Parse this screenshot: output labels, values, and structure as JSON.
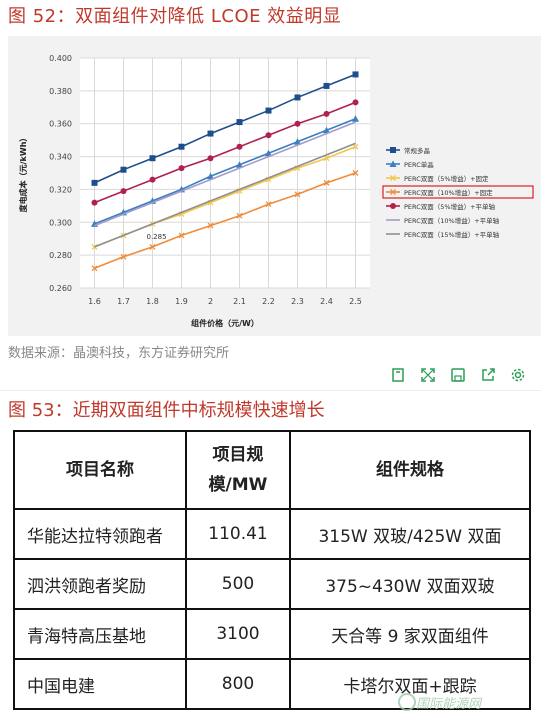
{
  "figure1": {
    "title": "图 52：双面组件对降低 LCOE 效益明显",
    "source": "数据来源：晶澳科技，东方证券研究所"
  },
  "figure2": {
    "title": "图 53：近期双面组件中标规模快速增长",
    "table": {
      "headers": [
        "项目名称",
        "项目规模/MW",
        "组件规格"
      ],
      "rows": [
        [
          "华能达拉特领跑者",
          "110.41",
          "315W 双玻/425W 双面"
        ],
        [
          "泗洪领跑者奖励",
          "500",
          "375~430W 双面双玻"
        ],
        [
          "青海特高压基地",
          "3100",
          "天合等 9 家双面组件"
        ],
        [
          "中国电建",
          "800",
          "卡塔尔双面+跟踪"
        ]
      ]
    }
  },
  "toolbar": {
    "icons": [
      "bookmark-icon",
      "expand-icon",
      "save-icon",
      "share-icon",
      "settings-icon"
    ]
  },
  "watermark": "国际能源网",
  "chart_data": {
    "type": "line",
    "title": "",
    "xlabel": "组件价格（元/W）",
    "ylabel": "度电成本（元/kWh）",
    "xlim": [
      1.55,
      2.55
    ],
    "ylim": [
      0.26,
      0.4
    ],
    "x_ticks": [
      "1.6",
      "1.7",
      "1.8",
      "1.9",
      "2",
      "2.1",
      "2.2",
      "2.3",
      "2.4",
      "2.5"
    ],
    "y_ticks": [
      "0.260",
      "0.280",
      "0.300",
      "0.320",
      "0.340",
      "0.360",
      "0.380",
      "0.400"
    ],
    "grid": true,
    "legend_position": "right",
    "highlighted_legend_index": 3,
    "annotation": {
      "text": "0.285",
      "x": 1.8,
      "y": 0.285
    },
    "series": [
      {
        "name": "常规多晶",
        "color": "#1f4e8c",
        "marker": "square",
        "x": [
          1.6,
          1.7,
          1.8,
          1.9,
          2.0,
          2.1,
          2.2,
          2.3,
          2.4,
          2.5
        ],
        "y": [
          0.324,
          0.332,
          0.339,
          0.346,
          0.354,
          0.361,
          0.368,
          0.376,
          0.383,
          0.39
        ]
      },
      {
        "name": "PERC单晶",
        "color": "#3a7fc4",
        "marker": "triangle",
        "x": [
          1.6,
          1.7,
          1.8,
          1.9,
          2.0,
          2.1,
          2.2,
          2.3,
          2.4,
          2.5
        ],
        "y": [
          0.299,
          0.306,
          0.313,
          0.32,
          0.328,
          0.335,
          0.342,
          0.349,
          0.356,
          0.363
        ]
      },
      {
        "name": "PERC双面（5%增益）+固定",
        "color": "#f2c84b",
        "marker": "x",
        "x": [
          1.6,
          1.7,
          1.8,
          1.9,
          2.0,
          2.1,
          2.2,
          2.3,
          2.4,
          2.5
        ],
        "y": [
          0.285,
          0.292,
          0.299,
          0.305,
          0.312,
          0.319,
          0.326,
          0.333,
          0.339,
          0.346
        ]
      },
      {
        "name": "PERC双面（10%增益）+固定",
        "color": "#f08c3a",
        "marker": "x",
        "x": [
          1.6,
          1.7,
          1.8,
          1.9,
          2.0,
          2.1,
          2.2,
          2.3,
          2.4,
          2.5
        ],
        "y": [
          0.272,
          0.279,
          0.285,
          0.292,
          0.298,
          0.304,
          0.311,
          0.317,
          0.324,
          0.33
        ]
      },
      {
        "name": "PERC双面（5%增益）+平单轴",
        "color": "#b0214e",
        "marker": "circle",
        "x": [
          1.6,
          1.7,
          1.8,
          1.9,
          2.0,
          2.1,
          2.2,
          2.3,
          2.4,
          2.5
        ],
        "y": [
          0.312,
          0.319,
          0.326,
          0.333,
          0.339,
          0.346,
          0.353,
          0.36,
          0.366,
          0.373
        ]
      },
      {
        "name": "PERC双面（10%增益）+平单轴",
        "color": "#a79ac8",
        "marker": "none",
        "x": [
          1.6,
          1.7,
          1.8,
          1.9,
          2.0,
          2.1,
          2.2,
          2.3,
          2.4,
          2.5
        ],
        "y": [
          0.298,
          0.305,
          0.312,
          0.319,
          0.326,
          0.333,
          0.34,
          0.347,
          0.354,
          0.361
        ]
      },
      {
        "name": "PERC双面（15%增益）+平单轴",
        "color": "#8f8f8f",
        "marker": "none",
        "x": [
          1.6,
          1.7,
          1.8,
          1.9,
          2.0,
          2.1,
          2.2,
          2.3,
          2.4,
          2.5
        ],
        "y": [
          0.285,
          0.292,
          0.299,
          0.306,
          0.313,
          0.32,
          0.327,
          0.334,
          0.341,
          0.348
        ]
      }
    ]
  }
}
